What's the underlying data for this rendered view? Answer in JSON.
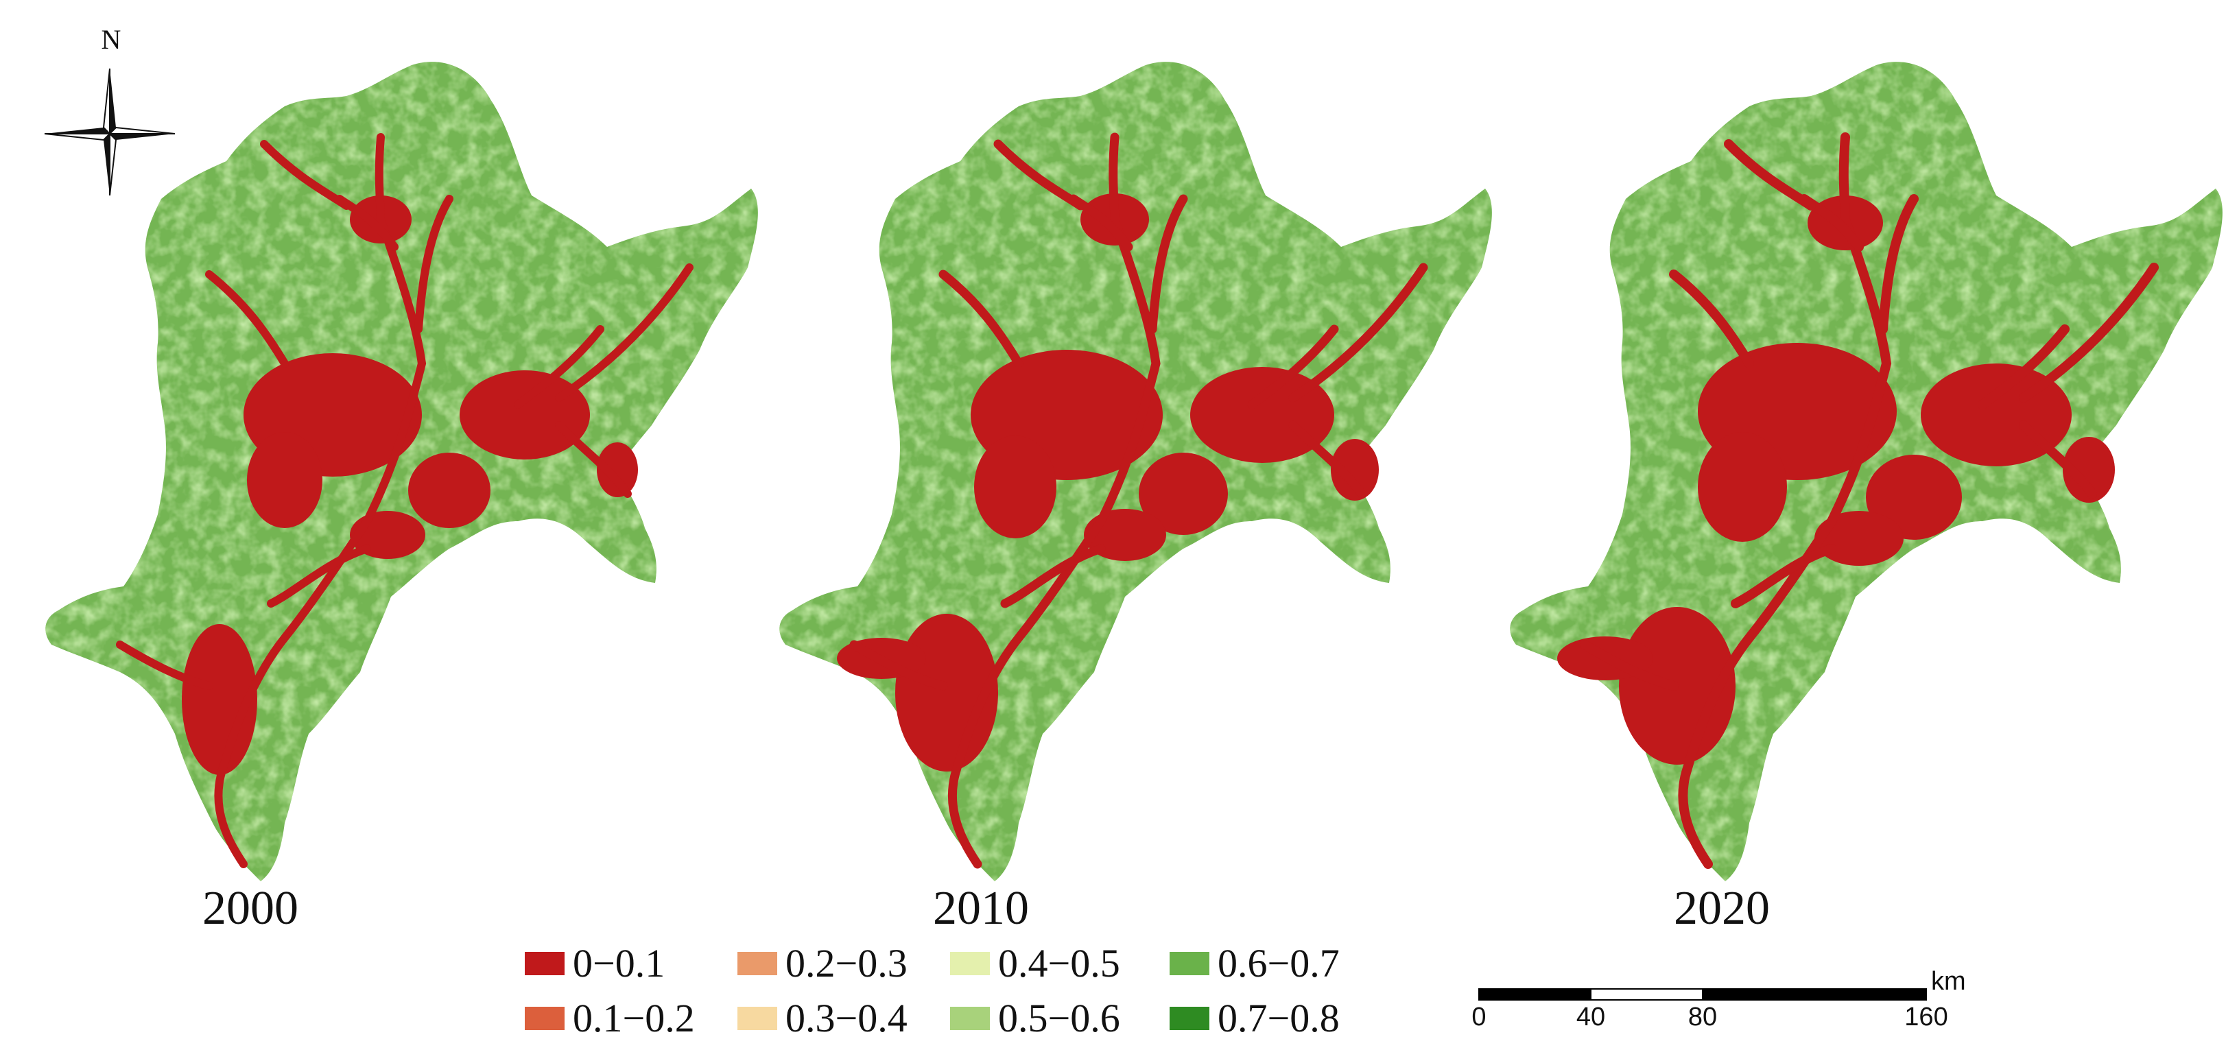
{
  "north_arrow": {
    "letter": "N",
    "icon": "compass-rose-icon"
  },
  "maps": [
    {
      "year": "2000"
    },
    {
      "year": "2010"
    },
    {
      "year": "2020"
    }
  ],
  "legend": {
    "items": [
      {
        "label": "0−0.1",
        "color": "#c0191b"
      },
      {
        "label": "0.1−0.2",
        "color": "#dc5f3c"
      },
      {
        "label": "0.2−0.3",
        "color": "#ea9a6a"
      },
      {
        "label": "0.3−0.4",
        "color": "#f7d9a0"
      },
      {
        "label": "0.4−0.5",
        "color": "#e4f0ad"
      },
      {
        "label": "0.5−0.6",
        "color": "#a8d27b"
      },
      {
        "label": "0.6−0.7",
        "color": "#6ab24a"
      },
      {
        "label": "0.7−0.8",
        "color": "#2e8b22"
      }
    ]
  },
  "scale_bar": {
    "unit": "km",
    "ticks": [
      "0",
      "40",
      "80",
      "160"
    ]
  }
}
